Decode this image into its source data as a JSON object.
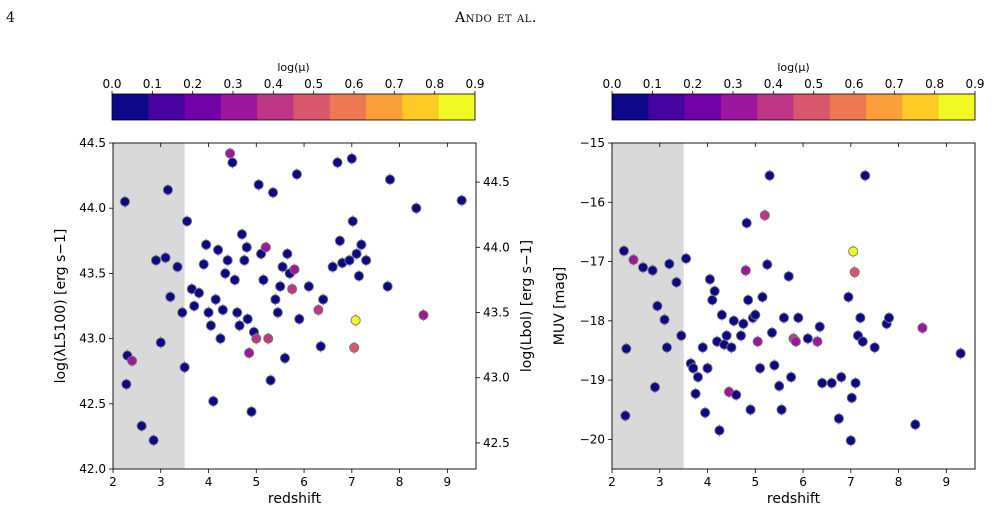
{
  "header": {
    "page_number": "4",
    "running_title": "Ando et al."
  },
  "colorbar": {
    "label": "log(μ)",
    "ticks": [
      "0.0",
      "0.1",
      "0.2",
      "0.3",
      "0.4",
      "0.5",
      "0.6",
      "0.7",
      "0.8",
      "0.9"
    ],
    "colors": [
      "#0d0887",
      "#46039f",
      "#7201a8",
      "#9c179e",
      "#bd3786",
      "#d8576b",
      "#ed7953",
      "#fb9f3a",
      "#fdca26",
      "#f0f921"
    ]
  },
  "chart_data": [
    {
      "type": "scatter",
      "xlabel": "redshift",
      "ylabel": "log(λL5100) [erg s−1]",
      "y2label": "log(Lbol) [erg s−1]",
      "xlim": [
        2,
        9.6
      ],
      "ylim": [
        42.0,
        44.5
      ],
      "xticks": [
        "2",
        "3",
        "4",
        "5",
        "6",
        "7",
        "8",
        "9"
      ],
      "yticks": [
        "42.0",
        "42.5",
        "43.0",
        "43.5",
        "44.0",
        "44.5"
      ],
      "y2ticks": [
        "42.5",
        "43.0",
        "43.5",
        "44.0",
        "44.5"
      ],
      "shaded_region_x": [
        2,
        3.5
      ],
      "points": [
        [
          2.25,
          44.05,
          0
        ],
        [
          2.3,
          42.87,
          0
        ],
        [
          2.28,
          42.65,
          0
        ],
        [
          2.4,
          42.83,
          0.35
        ],
        [
          2.6,
          42.33,
          0
        ],
        [
          2.85,
          42.22,
          0
        ],
        [
          2.9,
          43.6,
          0
        ],
        [
          3.0,
          42.97,
          0
        ],
        [
          3.1,
          43.62,
          0
        ],
        [
          3.15,
          44.14,
          0
        ],
        [
          3.2,
          43.32,
          0
        ],
        [
          3.35,
          43.55,
          0
        ],
        [
          3.45,
          43.2,
          0
        ],
        [
          3.5,
          42.78,
          0
        ],
        [
          3.55,
          43.9,
          0
        ],
        [
          3.65,
          43.38,
          0
        ],
        [
          3.7,
          43.25,
          0
        ],
        [
          3.8,
          43.35,
          0
        ],
        [
          3.9,
          43.57,
          0
        ],
        [
          3.95,
          43.72,
          0
        ],
        [
          4.0,
          43.2,
          0
        ],
        [
          4.05,
          43.1,
          0
        ],
        [
          4.1,
          42.52,
          0
        ],
        [
          4.15,
          43.3,
          0
        ],
        [
          4.2,
          43.68,
          0
        ],
        [
          4.25,
          43.0,
          0
        ],
        [
          4.3,
          43.22,
          0
        ],
        [
          4.35,
          43.5,
          0
        ],
        [
          4.4,
          43.6,
          0
        ],
        [
          4.45,
          44.42,
          0.35
        ],
        [
          4.5,
          44.35,
          0
        ],
        [
          4.55,
          43.45,
          0
        ],
        [
          4.6,
          43.2,
          0
        ],
        [
          4.65,
          43.1,
          0
        ],
        [
          4.7,
          43.8,
          0
        ],
        [
          4.75,
          43.6,
          0
        ],
        [
          4.8,
          43.7,
          0
        ],
        [
          4.82,
          43.15,
          0
        ],
        [
          4.85,
          42.89,
          0.35
        ],
        [
          4.9,
          42.44,
          0
        ],
        [
          4.95,
          43.05,
          0
        ],
        [
          5.0,
          43.0,
          0.45
        ],
        [
          5.05,
          44.18,
          0
        ],
        [
          5.1,
          43.65,
          0
        ],
        [
          5.15,
          43.45,
          0
        ],
        [
          5.2,
          43.7,
          0.35
        ],
        [
          5.25,
          43.0,
          0.45
        ],
        [
          5.3,
          42.68,
          0
        ],
        [
          5.35,
          44.12,
          0
        ],
        [
          5.4,
          43.3,
          0
        ],
        [
          5.45,
          43.2,
          0
        ],
        [
          5.5,
          43.4,
          0
        ],
        [
          5.55,
          43.55,
          0
        ],
        [
          5.6,
          42.85,
          0
        ],
        [
          5.65,
          43.65,
          0
        ],
        [
          5.7,
          43.5,
          0
        ],
        [
          5.75,
          43.38,
          0.4
        ],
        [
          5.8,
          43.53,
          0.35
        ],
        [
          5.85,
          44.26,
          0
        ],
        [
          5.9,
          43.15,
          0
        ],
        [
          6.1,
          43.4,
          0
        ],
        [
          6.3,
          43.22,
          0.4
        ],
        [
          6.35,
          42.94,
          0
        ],
        [
          6.4,
          43.3,
          0
        ],
        [
          6.6,
          43.55,
          0
        ],
        [
          6.7,
          44.35,
          0
        ],
        [
          6.75,
          43.75,
          0
        ],
        [
          6.8,
          43.58,
          0
        ],
        [
          6.95,
          43.6,
          0
        ],
        [
          7.0,
          44.38,
          0
        ],
        [
          7.02,
          43.9,
          0
        ],
        [
          7.05,
          42.93,
          0.5
        ],
        [
          7.08,
          43.14,
          0.9
        ],
        [
          7.1,
          43.65,
          0
        ],
        [
          7.15,
          43.48,
          0
        ],
        [
          7.2,
          43.72,
          0
        ],
        [
          7.3,
          43.6,
          0
        ],
        [
          7.75,
          43.4,
          0
        ],
        [
          7.8,
          44.22,
          0
        ],
        [
          8.35,
          44.0,
          0
        ],
        [
          8.5,
          43.18,
          0.35
        ],
        [
          9.3,
          44.06,
          0
        ]
      ]
    },
    {
      "type": "scatter",
      "xlabel": "redshift",
      "ylabel": "MUV [mag]",
      "xlim": [
        2,
        9.6
      ],
      "ylim": [
        -20.5,
        -15
      ],
      "y_inverted": true,
      "xticks": [
        "2",
        "3",
        "4",
        "5",
        "6",
        "7",
        "8",
        "9"
      ],
      "yticks": [
        "−15",
        "−16",
        "−17",
        "−18",
        "−19",
        "−20"
      ],
      "shaded_region_x": [
        2,
        3.5
      ],
      "points": [
        [
          2.25,
          -16.82,
          0
        ],
        [
          2.3,
          -18.47,
          0
        ],
        [
          2.28,
          -19.6,
          0
        ],
        [
          2.45,
          -16.97,
          0.35
        ],
        [
          2.65,
          -17.1,
          0
        ],
        [
          2.85,
          -17.15,
          0
        ],
        [
          2.9,
          -19.12,
          0
        ],
        [
          2.95,
          -17.75,
          0
        ],
        [
          3.1,
          -17.98,
          0
        ],
        [
          3.15,
          -18.45,
          0
        ],
        [
          3.2,
          -17.04,
          0
        ],
        [
          3.35,
          -17.35,
          0
        ],
        [
          3.45,
          -18.25,
          0
        ],
        [
          3.55,
          -16.95,
          0
        ],
        [
          3.65,
          -18.72,
          0
        ],
        [
          3.7,
          -18.8,
          0
        ],
        [
          3.75,
          -19.23,
          0
        ],
        [
          3.8,
          -18.95,
          0
        ],
        [
          3.9,
          -18.45,
          0
        ],
        [
          3.95,
          -19.55,
          0
        ],
        [
          4.0,
          -18.8,
          0
        ],
        [
          4.05,
          -17.3,
          0
        ],
        [
          4.1,
          -17.65,
          0
        ],
        [
          4.15,
          -17.5,
          0
        ],
        [
          4.2,
          -18.35,
          0
        ],
        [
          4.25,
          -19.85,
          0
        ],
        [
          4.3,
          -17.9,
          0
        ],
        [
          4.35,
          -18.4,
          0
        ],
        [
          4.4,
          -18.25,
          0
        ],
        [
          4.45,
          -19.2,
          0.35
        ],
        [
          4.5,
          -18.45,
          0
        ],
        [
          4.55,
          -18.0,
          0
        ],
        [
          4.6,
          -19.25,
          0
        ],
        [
          4.7,
          -18.25,
          0
        ],
        [
          4.75,
          -18.05,
          0
        ],
        [
          4.8,
          -17.15,
          0.35
        ],
        [
          4.82,
          -16.35,
          0
        ],
        [
          4.85,
          -17.65,
          0
        ],
        [
          4.9,
          -19.5,
          0
        ],
        [
          4.95,
          -17.95,
          0
        ],
        [
          5.0,
          -17.9,
          0
        ],
        [
          5.05,
          -18.35,
          0.35
        ],
        [
          5.1,
          -18.8,
          0
        ],
        [
          5.15,
          -17.6,
          0
        ],
        [
          5.2,
          -16.22,
          0.4
        ],
        [
          5.25,
          -17.05,
          0
        ],
        [
          5.3,
          -15.55,
          0
        ],
        [
          5.35,
          -18.2,
          0
        ],
        [
          5.4,
          -18.75,
          0
        ],
        [
          5.5,
          -19.1,
          0
        ],
        [
          5.55,
          -19.5,
          0
        ],
        [
          5.6,
          -17.95,
          0
        ],
        [
          5.7,
          -17.25,
          0
        ],
        [
          5.75,
          -18.95,
          0
        ],
        [
          5.8,
          -18.3,
          0.4
        ],
        [
          5.85,
          -18.35,
          0.35
        ],
        [
          5.9,
          -17.95,
          0
        ],
        [
          6.1,
          -18.3,
          0
        ],
        [
          6.3,
          -18.35,
          0.35
        ],
        [
          6.35,
          -18.1,
          0
        ],
        [
          6.4,
          -19.05,
          0
        ],
        [
          6.6,
          -19.05,
          0
        ],
        [
          6.75,
          -19.65,
          0
        ],
        [
          6.8,
          -18.95,
          0
        ],
        [
          6.95,
          -17.6,
          0
        ],
        [
          7.0,
          -20.02,
          0
        ],
        [
          7.02,
          -19.3,
          0
        ],
        [
          7.05,
          -16.83,
          0.9
        ],
        [
          7.08,
          -17.18,
          0.5
        ],
        [
          7.1,
          -19.05,
          0
        ],
        [
          7.15,
          -18.25,
          0
        ],
        [
          7.2,
          -17.95,
          0
        ],
        [
          7.25,
          -18.35,
          0
        ],
        [
          7.3,
          -15.55,
          0
        ],
        [
          7.5,
          -18.45,
          0
        ],
        [
          7.75,
          -18.05,
          0
        ],
        [
          7.8,
          -17.95,
          0
        ],
        [
          8.35,
          -19.75,
          0
        ],
        [
          8.5,
          -18.12,
          0.35
        ],
        [
          9.3,
          -18.55,
          0
        ]
      ]
    }
  ]
}
